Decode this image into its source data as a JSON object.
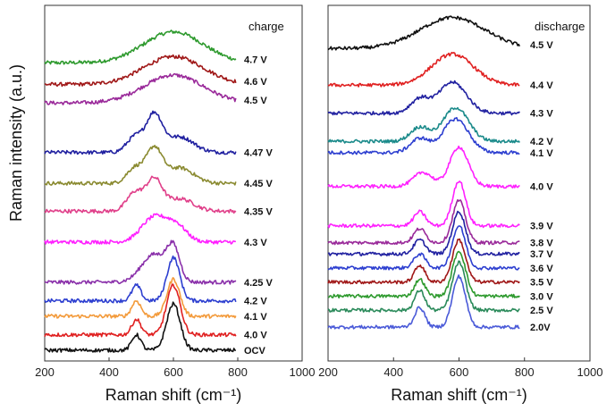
{
  "ylabel": "Raman intensity (a.u.)",
  "chart_data": [
    {
      "type": "line",
      "title": "charge",
      "xlabel": "Raman shift (cm⁻¹)",
      "ylabel": "Raman intensity (a.u.)",
      "xlim": [
        200,
        1000
      ],
      "xticks": [
        "200",
        "400",
        "600",
        "800",
        "1000"
      ],
      "series": [
        {
          "name": "4.7 V",
          "color": "#2e9a2e",
          "offset": 9.3,
          "peaks": [
            [
              600,
              1.0,
              130
            ]
          ]
        },
        {
          "name": "4.6 V",
          "color": "#a01818",
          "offset": 8.6,
          "peaks": [
            [
              600,
              0.9,
              130
            ]
          ]
        },
        {
          "name": "4.5 V",
          "color": "#9a2a9a",
          "offset": 8.0,
          "peaks": [
            [
              600,
              0.9,
              130
            ]
          ]
        },
        {
          "name": "4.47 V",
          "color": "#2020a0",
          "offset": 6.4,
          "peaks": [
            [
              480,
              0.5,
              35
            ],
            [
              540,
              1.2,
              35
            ],
            [
              620,
              0.5,
              60
            ]
          ]
        },
        {
          "name": "4.45 V",
          "color": "#8a8a30",
          "offset": 5.4,
          "peaks": [
            [
              480,
              0.5,
              35
            ],
            [
              540,
              1.1,
              35
            ],
            [
              620,
              0.5,
              60
            ]
          ]
        },
        {
          "name": "4.35 V",
          "color": "#e0408a",
          "offset": 4.5,
          "peaks": [
            [
              480,
              0.6,
              35
            ],
            [
              540,
              1.0,
              35
            ],
            [
              620,
              0.4,
              60
            ]
          ]
        },
        {
          "name": "4.3 V",
          "color": "#ff20ff",
          "offset": 3.5,
          "peaks": [
            [
              540,
              0.8,
              55
            ],
            [
              610,
              0.5,
              45
            ]
          ]
        },
        {
          "name": "4.25 V",
          "color": "#8a30aa",
          "offset": 2.2,
          "peaks": [
            [
              540,
              0.9,
              55
            ],
            [
              600,
              1.0,
              28
            ]
          ]
        },
        {
          "name": "4.2 V",
          "color": "#2d3fd0",
          "offset": 1.6,
          "peaks": [
            [
              485,
              0.5,
              20
            ],
            [
              600,
              1.4,
              28
            ]
          ]
        },
        {
          "name": "4.1 V",
          "color": "#f39a3a",
          "offset": 1.1,
          "peaks": [
            [
              485,
              0.5,
              20
            ],
            [
              600,
              1.2,
              28
            ]
          ]
        },
        {
          "name": "4.0 V",
          "color": "#e02020",
          "offset": 0.5,
          "peaks": [
            [
              485,
              0.5,
              20
            ],
            [
              600,
              1.6,
              30
            ]
          ]
        },
        {
          "name": "OCV",
          "color": "#111111",
          "offset": 0.0,
          "peaks": [
            [
              485,
              0.5,
              20
            ],
            [
              600,
              1.5,
              30
            ]
          ]
        }
      ]
    },
    {
      "type": "line",
      "title": "discharge",
      "xlabel": "Raman shift (cm⁻¹)",
      "xlim": [
        200,
        1000
      ],
      "xticks": [
        "200",
        "400",
        "600",
        "800",
        "1000"
      ],
      "series": [
        {
          "name": "4.5 V",
          "color": "#111111",
          "offset": 10.5,
          "peaks": [
            [
              580,
              1.1,
              140
            ]
          ]
        },
        {
          "name": "4.4 V",
          "color": "#e02020",
          "offset": 9.2,
          "peaks": [
            [
              580,
              1.1,
              90
            ]
          ]
        },
        {
          "name": "4.3 V",
          "color": "#2020a0",
          "offset": 8.2,
          "peaks": [
            [
              480,
              0.5,
              40
            ],
            [
              580,
              1.1,
              60
            ]
          ]
        },
        {
          "name": "4.2 V",
          "color": "#1a8a8a",
          "offset": 7.2,
          "peaks": [
            [
              480,
              0.5,
              40
            ],
            [
              590,
              1.2,
              55
            ]
          ]
        },
        {
          "name": "4.1 V",
          "color": "#2d3fd0",
          "offset": 6.8,
          "peaks": [
            [
              480,
              0.5,
              40
            ],
            [
              590,
              1.2,
              55
            ]
          ]
        },
        {
          "name": "4.0 V",
          "color": "#ff20ff",
          "offset": 5.6,
          "peaks": [
            [
              490,
              0.5,
              40
            ],
            [
              600,
              1.4,
              40
            ]
          ]
        },
        {
          "name": "3.9 V",
          "color": "#ff20ff",
          "offset": 4.2,
          "peaks": [
            [
              480,
              0.5,
              25
            ],
            [
              600,
              1.6,
              28
            ]
          ]
        },
        {
          "name": "3.8 V",
          "color": "#9a2a9a",
          "offset": 3.6,
          "peaks": [
            [
              480,
              0.5,
              25
            ],
            [
              600,
              1.5,
              28
            ]
          ]
        },
        {
          "name": "3.7 V",
          "color": "#2020a0",
          "offset": 3.2,
          "peaks": [
            [
              480,
              0.5,
              25
            ],
            [
              600,
              1.5,
              28
            ]
          ]
        },
        {
          "name": "3.6 V",
          "color": "#2d3fd0",
          "offset": 2.7,
          "peaks": [
            [
              480,
              0.5,
              25
            ],
            [
              600,
              1.5,
              28
            ]
          ]
        },
        {
          "name": "3.5 V",
          "color": "#a01818",
          "offset": 2.2,
          "peaks": [
            [
              480,
              0.6,
              22
            ],
            [
              600,
              1.5,
              28
            ]
          ]
        },
        {
          "name": "3.0 V",
          "color": "#2e9a2e",
          "offset": 1.7,
          "peaks": [
            [
              480,
              0.6,
              22
            ],
            [
              600,
              1.6,
              28
            ]
          ]
        },
        {
          "name": "2.5 V",
          "color": "#2a8a5a",
          "offset": 1.2,
          "peaks": [
            [
              480,
              0.7,
              22
            ],
            [
              600,
              1.7,
              28
            ]
          ]
        },
        {
          "name": "2.0V",
          "color": "#4a5ad8",
          "offset": 0.6,
          "peaks": [
            [
              480,
              0.7,
              22
            ],
            [
              600,
              1.8,
              28
            ]
          ]
        }
      ]
    }
  ]
}
